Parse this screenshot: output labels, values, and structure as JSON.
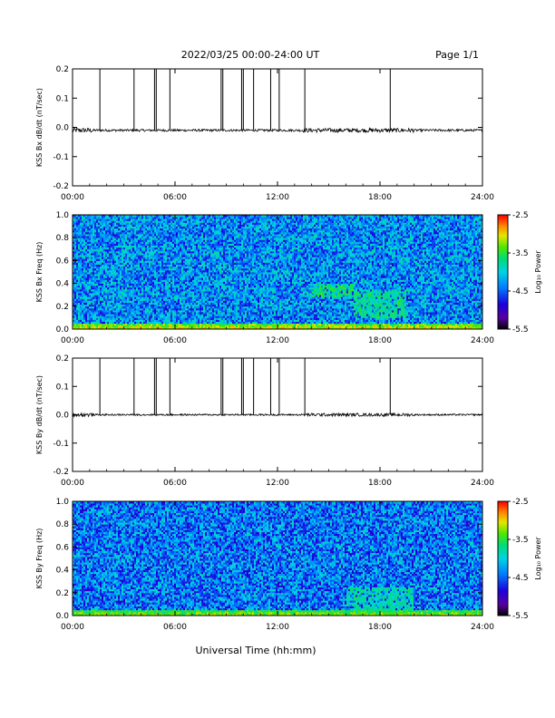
{
  "header": {
    "date_range": "2022/03/25  00:00-24:00 UT",
    "page": "Page 1/1"
  },
  "x_axis": {
    "label": "Universal Time (hh:mm)",
    "range_hours": [
      0,
      24
    ],
    "tick_hours": [
      0,
      6,
      12,
      18,
      24
    ],
    "tick_labels": [
      "00:00",
      "06:00",
      "12:00",
      "18:00",
      "24:00"
    ]
  },
  "chart_data": [
    {
      "type": "line",
      "ylabel": "KSS Bx dB/dt (nT/sec)",
      "ylim": [
        -0.2,
        0.2
      ],
      "yticks": [
        -0.2,
        -0.1,
        0.0,
        0.1,
        0.2
      ],
      "ytick_labels": [
        "-0.2",
        "-0.1",
        "0.0",
        "0.1",
        "0.2"
      ],
      "baseline": -0.01,
      "noise_amplitude": 0.004,
      "spikes_hours": [
        1.6,
        3.6,
        4.8,
        4.9,
        5.7,
        8.7,
        8.8,
        9.9,
        10.0,
        10.6,
        11.6,
        12.1,
        13.6,
        18.6
      ],
      "color": "#000000"
    },
    {
      "type": "heatmap",
      "ylabel": "KSS Bx Freq (Hz)",
      "ylim": [
        0.0,
        1.0
      ],
      "yticks": [
        0.0,
        0.2,
        0.4,
        0.6,
        0.8,
        1.0
      ],
      "ytick_labels": [
        "0.0",
        "0.2",
        "0.4",
        "0.6",
        "0.8",
        "1.0"
      ],
      "colorbar": {
        "label": "Log₁₀ Power",
        "range": [
          -5.5,
          -2.5
        ],
        "ticks": [
          -5.5,
          -4.5,
          -3.5,
          -2.5
        ],
        "tick_labels": [
          "-5.5",
          "-4.5",
          "-3.5",
          "-2.5"
        ],
        "colormap": "rainbow"
      },
      "background_level": -4.3,
      "features": [
        {
          "kind": "low_freq_band",
          "freq_max": 0.05,
          "level": -3.0
        },
        {
          "kind": "pc_band",
          "hours": [
            14.0,
            16.5
          ],
          "freq": [
            0.28,
            0.4
          ],
          "level": -3.6
        },
        {
          "kind": "pc_band",
          "hours": [
            16.5,
            19.5
          ],
          "freq": [
            0.1,
            0.35
          ],
          "level": -3.7
        }
      ]
    },
    {
      "type": "line",
      "ylabel": "KSS By dB/dt (nT/sec)",
      "ylim": [
        -0.2,
        0.2
      ],
      "yticks": [
        -0.2,
        -0.1,
        0.0,
        0.1,
        0.2
      ],
      "ytick_labels": [
        "-0.2",
        "-0.1",
        "0.0",
        "0.1",
        "0.2"
      ],
      "baseline": 0.0,
      "noise_amplitude": 0.003,
      "spikes_hours": [
        1.6,
        3.6,
        4.8,
        4.9,
        5.7,
        8.7,
        8.8,
        9.9,
        10.0,
        10.6,
        11.6,
        12.1,
        13.6,
        18.6
      ],
      "color": "#000000"
    },
    {
      "type": "heatmap",
      "ylabel": "KSS By Freq (Hz)",
      "ylim": [
        0.0,
        1.0
      ],
      "yticks": [
        0.0,
        0.2,
        0.4,
        0.6,
        0.8,
        1.0
      ],
      "ytick_labels": [
        "0.0",
        "0.2",
        "0.4",
        "0.6",
        "0.8",
        "1.0"
      ],
      "colorbar": {
        "label": "Log₁₀ Power",
        "range": [
          -5.5,
          -2.5
        ],
        "ticks": [
          -5.5,
          -4.5,
          -3.5,
          -2.5
        ],
        "tick_labels": [
          "-5.5",
          "-4.5",
          "-3.5",
          "-2.5"
        ],
        "colormap": "rainbow"
      },
      "background_level": -4.4,
      "features": [
        {
          "kind": "low_freq_band",
          "freq_max": 0.05,
          "level": -3.2
        },
        {
          "kind": "pc_band",
          "hours": [
            16.0,
            20.0
          ],
          "freq": [
            0.05,
            0.25
          ],
          "level": -3.8
        }
      ]
    }
  ]
}
